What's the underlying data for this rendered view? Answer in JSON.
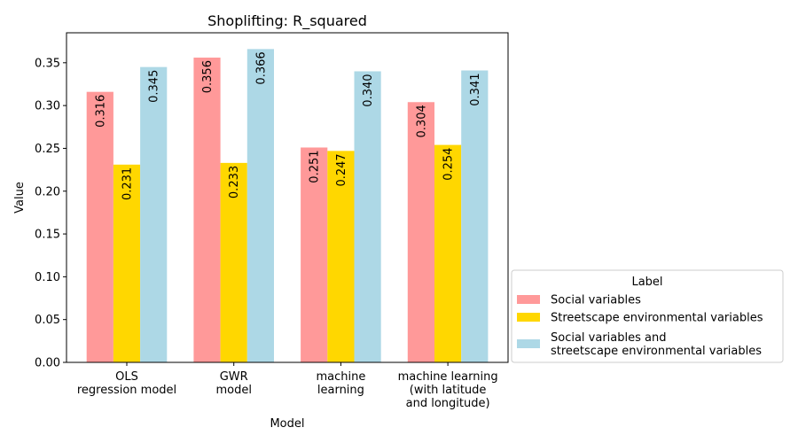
{
  "chart_data": {
    "type": "bar",
    "title": "Shoplifting: R_squared",
    "xlabel": "Model",
    "ylabel": "Value",
    "ylim": [
      0,
      0.385
    ],
    "yticks": [
      "0.00",
      "0.05",
      "0.10",
      "0.15",
      "0.20",
      "0.25",
      "0.30",
      "0.35"
    ],
    "categories": [
      [
        "OLS",
        "regression model"
      ],
      [
        "GWR",
        "model"
      ],
      [
        "machine",
        "learning"
      ],
      [
        "machine learning",
        "(with latitude",
        "and longitude)"
      ]
    ],
    "series": [
      {
        "name": "Social variables",
        "color": "#ff9999",
        "values": [
          0.316,
          0.356,
          0.251,
          0.304
        ],
        "labels": [
          "0.316",
          "0.356",
          "0.251",
          "0.304"
        ]
      },
      {
        "name": "Streetscape environmental variables",
        "color": "#ffd700",
        "values": [
          0.231,
          0.233,
          0.247,
          0.254
        ],
        "labels": [
          "0.231",
          "0.233",
          "0.247",
          "0.254"
        ]
      },
      {
        "name": [
          "Social variables and",
          "streetscape environmental variables"
        ],
        "color": "#add8e6",
        "values": [
          0.345,
          0.366,
          0.34,
          0.341
        ],
        "labels": [
          "0.345",
          "0.366",
          "0.340",
          "0.341"
        ]
      }
    ],
    "legend": {
      "title": "Label",
      "placement": "outside-right-bottom"
    },
    "grid": false
  }
}
